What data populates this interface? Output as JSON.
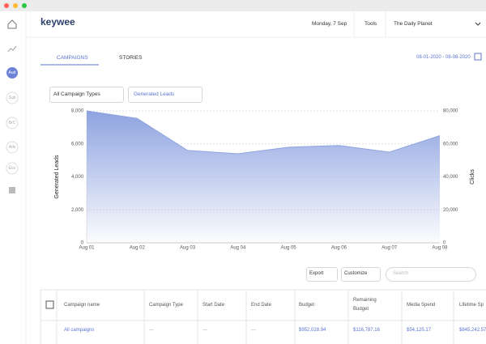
{
  "header": {
    "logo": "keywee",
    "date": "Monday, 7 Sep",
    "tools": "Tools",
    "account": "The Daily Planet"
  },
  "sidebar": [
    "Aud",
    "Sub",
    "BrC",
    "Ads",
    "Eco"
  ],
  "tabs": [
    "CAMPAIGNS",
    "STORIES"
  ],
  "date_range": "08-01-2020 - 08-08-2020",
  "filters": [
    "All Campaign Types",
    "Generated Leads"
  ],
  "chart_data": {
    "type": "area",
    "categories": [
      "Aug 01",
      "Aug 02",
      "Aug 03",
      "Aug 04",
      "Aug 05",
      "Aug 06",
      "Aug 07",
      "Aug 08"
    ],
    "series": [
      {
        "name": "Generated Leads",
        "color": "#8ea3e0",
        "values": [
          8000,
          7550,
          5600,
          5400,
          5800,
          5900,
          5500,
          6500
        ]
      }
    ],
    "ylabel": "Generated Leads",
    "y2label": "Clicks",
    "ylim": [
      0,
      8000
    ],
    "yticks": [
      0,
      {
        "value": 2000,
        "label": "2,000"
      },
      {
        "value": 4000,
        "label": "4,000"
      },
      {
        "value": 6000,
        "label": "6,000"
      },
      {
        "value": 8000,
        "label": "8,000"
      }
    ],
    "y2lim": [
      0,
      80000
    ],
    "y2ticks": [
      0,
      {
        "value": 20000,
        "label": "20,000"
      },
      {
        "value": 40000,
        "label": "40,000"
      },
      {
        "value": 60000,
        "label": "60,000"
      },
      {
        "value": 80000,
        "label": "80,000"
      }
    ],
    "grid": true
  },
  "toolbar": {
    "export": "Export",
    "customize": "Customize",
    "search_placeholder": "Search"
  },
  "table": {
    "columns": [
      "Campaign name",
      "Campaign Type",
      "Start Date",
      "End Date",
      "Budget",
      "Remaining Budget",
      "Media Spend",
      "Lifetime Sp"
    ],
    "rows": [
      [
        "All campaigns",
        "---",
        "---",
        "---",
        "$952,028.94",
        "$116,787.16",
        "$54,125.17",
        "$845,242.57"
      ]
    ]
  }
}
